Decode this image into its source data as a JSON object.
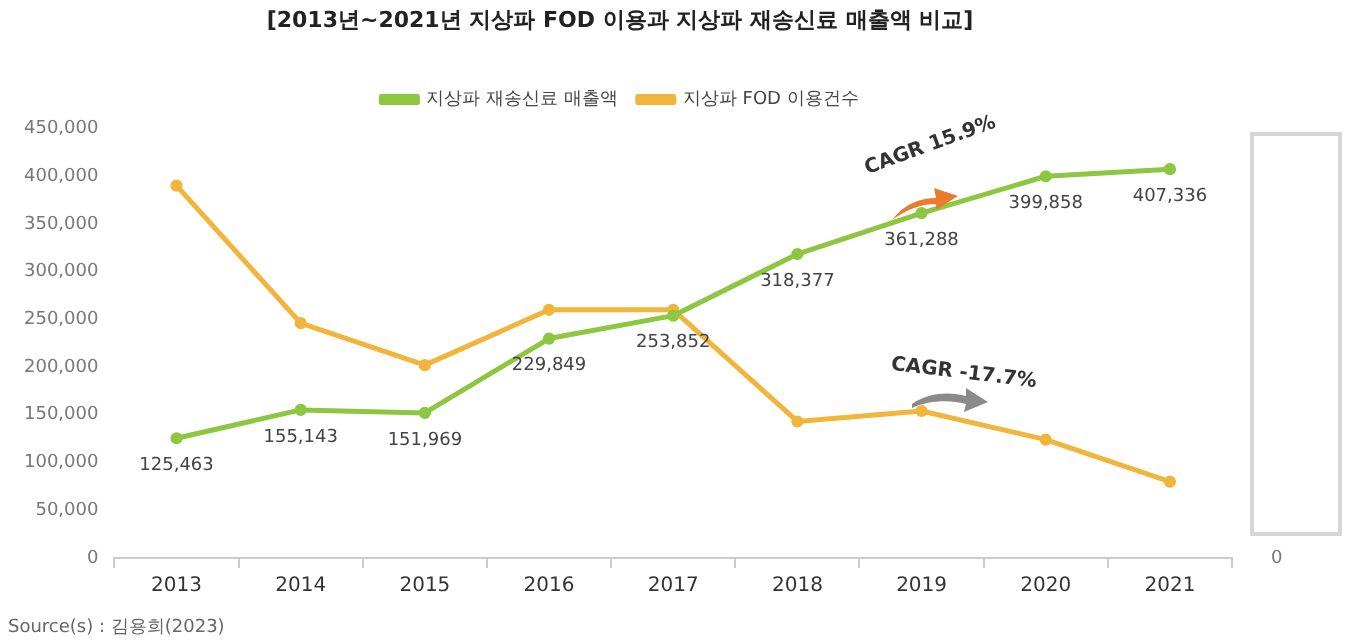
{
  "chart_data": {
    "type": "line",
    "title": "[2013년~2021년 지상파 FOD 이용과 지상파 재송신료 매출액 비교]",
    "categories": [
      "2013",
      "2014",
      "2015",
      "2016",
      "2017",
      "2018",
      "2019",
      "2020",
      "2021"
    ],
    "series": [
      {
        "name": "지상파 재송신료 매출액",
        "color": "#8dc63f",
        "values": [
          125463,
          155143,
          151969,
          229849,
          253852,
          318377,
          361288,
          399858,
          407336
        ],
        "value_labels": [
          "125,463",
          "155,143",
          "151,969",
          "229,849",
          "253,852",
          "318,377",
          "361,288",
          "399,858",
          "407,336"
        ]
      },
      {
        "name": "지상파 FOD 이용건수",
        "color": "#f2b53c",
        "values": [
          390000,
          246000,
          202000,
          260000,
          260000,
          143000,
          154000,
          124000,
          80000
        ]
      }
    ],
    "ylim": [
      0,
      450000
    ],
    "yticks": [
      {
        "value": 0,
        "label": "0"
      },
      {
        "value": 50000,
        "label": "50,000"
      },
      {
        "value": 100000,
        "label": "100,000"
      },
      {
        "value": 150000,
        "label": "150,000"
      },
      {
        "value": 200000,
        "label": "200,000"
      },
      {
        "value": 250000,
        "label": "250,000"
      },
      {
        "value": 300000,
        "label": "300,000"
      },
      {
        "value": 350000,
        "label": "350,000"
      },
      {
        "value": 400000,
        "label": "400,000"
      },
      {
        "value": 450000,
        "label": "450,000"
      }
    ],
    "annotations": [
      "CAGR 15.9%",
      "CAGR -17.7%",
      "0",
      "Source(s) : 김용희(2023)"
    ],
    "legend": "top",
    "grid": false,
    "marker": "circle",
    "line_style": "solid"
  }
}
